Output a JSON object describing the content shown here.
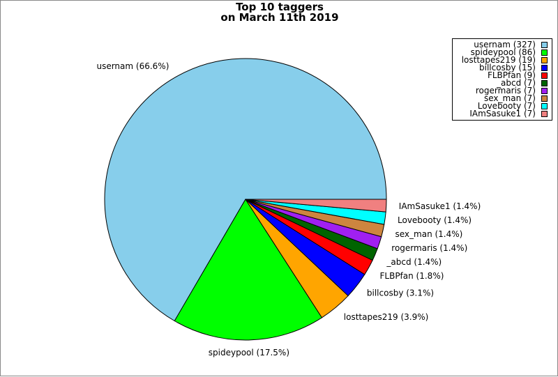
{
  "chart_data": {
    "type": "pie",
    "title": [
      "Top 10 taggers",
      "on March 11th 2019"
    ],
    "legend_position": "top-right",
    "slices": [
      {
        "name": "usernam",
        "value": 327,
        "percent": "66.6%",
        "color": "#87ceeb"
      },
      {
        "name": "spideypool",
        "value": 86,
        "percent": "17.5%",
        "color": "#00ff00"
      },
      {
        "name": "losttapes219",
        "value": 19,
        "percent": "3.9%",
        "color": "#ffa500"
      },
      {
        "name": "billcosby",
        "value": 15,
        "percent": "3.1%",
        "color": "#0000ff"
      },
      {
        "name": "FLBPfan",
        "value": 9,
        "percent": "1.8%",
        "color": "#ff0000"
      },
      {
        "name": "_abcd",
        "value": 7,
        "percent": "1.4%",
        "color": "#006400"
      },
      {
        "name": "rogermaris",
        "value": 7,
        "percent": "1.4%",
        "color": "#a020f0"
      },
      {
        "name": "sex_man",
        "value": 7,
        "percent": "1.4%",
        "color": "#cd853f"
      },
      {
        "name": "Lovebooty",
        "value": 7,
        "percent": "1.4%",
        "color": "#00ffff"
      },
      {
        "name": "IAmSasuke1",
        "value": 7,
        "percent": "1.4%",
        "color": "#f08080"
      }
    ]
  }
}
